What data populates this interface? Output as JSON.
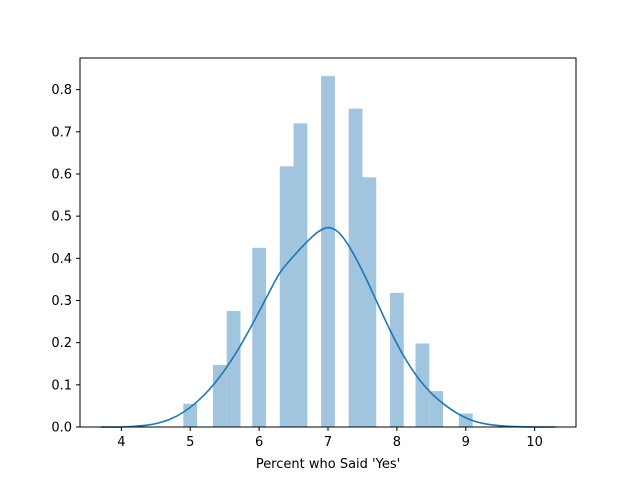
{
  "chart_data": {
    "type": "bar",
    "xlabel": "Percent who Said 'Yes'",
    "ylabel": "",
    "xlim": [
      3.4,
      10.6
    ],
    "ylim": [
      0,
      0.875
    ],
    "xticks": [
      4,
      5,
      6,
      7,
      8,
      9,
      10
    ],
    "yticks": [
      0.0,
      0.1,
      0.2,
      0.3,
      0.4,
      0.5,
      0.6,
      0.7,
      0.8
    ],
    "bar_color": "#a1c4df",
    "line_color": "#1f77b4",
    "histogram": {
      "bins": [
        {
          "x0": 4.9,
          "x1": 5.1,
          "value": 0.055
        },
        {
          "x0": 5.33,
          "x1": 5.53,
          "value": 0.147
        },
        {
          "x0": 5.53,
          "x1": 5.73,
          "value": 0.275
        },
        {
          "x0": 5.9,
          "x1": 6.1,
          "value": 0.425
        },
        {
          "x0": 6.3,
          "x1": 6.5,
          "value": 0.618
        },
        {
          "x0": 6.5,
          "x1": 6.7,
          "value": 0.72
        },
        {
          "x0": 6.9,
          "x1": 7.1,
          "value": 0.832
        },
        {
          "x0": 7.3,
          "x1": 7.5,
          "value": 0.755
        },
        {
          "x0": 7.5,
          "x1": 7.7,
          "value": 0.592
        },
        {
          "x0": 7.9,
          "x1": 8.1,
          "value": 0.318
        },
        {
          "x0": 8.27,
          "x1": 8.47,
          "value": 0.198
        },
        {
          "x0": 8.47,
          "x1": 8.67,
          "value": 0.085
        },
        {
          "x0": 8.9,
          "x1": 9.1,
          "value": 0.032
        }
      ]
    },
    "kde": {
      "x": [
        3.7,
        4.0,
        4.3,
        4.5,
        4.7,
        4.9,
        5.1,
        5.3,
        5.5,
        5.7,
        5.9,
        6.1,
        6.3,
        6.5,
        6.7,
        6.85,
        7.0,
        7.15,
        7.3,
        7.5,
        7.7,
        7.9,
        8.1,
        8.3,
        8.5,
        8.7,
        8.9,
        9.1,
        9.3,
        9.5,
        9.7,
        10.0,
        10.3
      ],
      "y": [
        0.0,
        0.0,
        0.003,
        0.008,
        0.018,
        0.035,
        0.06,
        0.093,
        0.135,
        0.185,
        0.243,
        0.305,
        0.365,
        0.405,
        0.44,
        0.462,
        0.473,
        0.462,
        0.43,
        0.37,
        0.3,
        0.23,
        0.168,
        0.118,
        0.08,
        0.052,
        0.03,
        0.015,
        0.007,
        0.003,
        0.001,
        0.0,
        0.0
      ]
    }
  }
}
